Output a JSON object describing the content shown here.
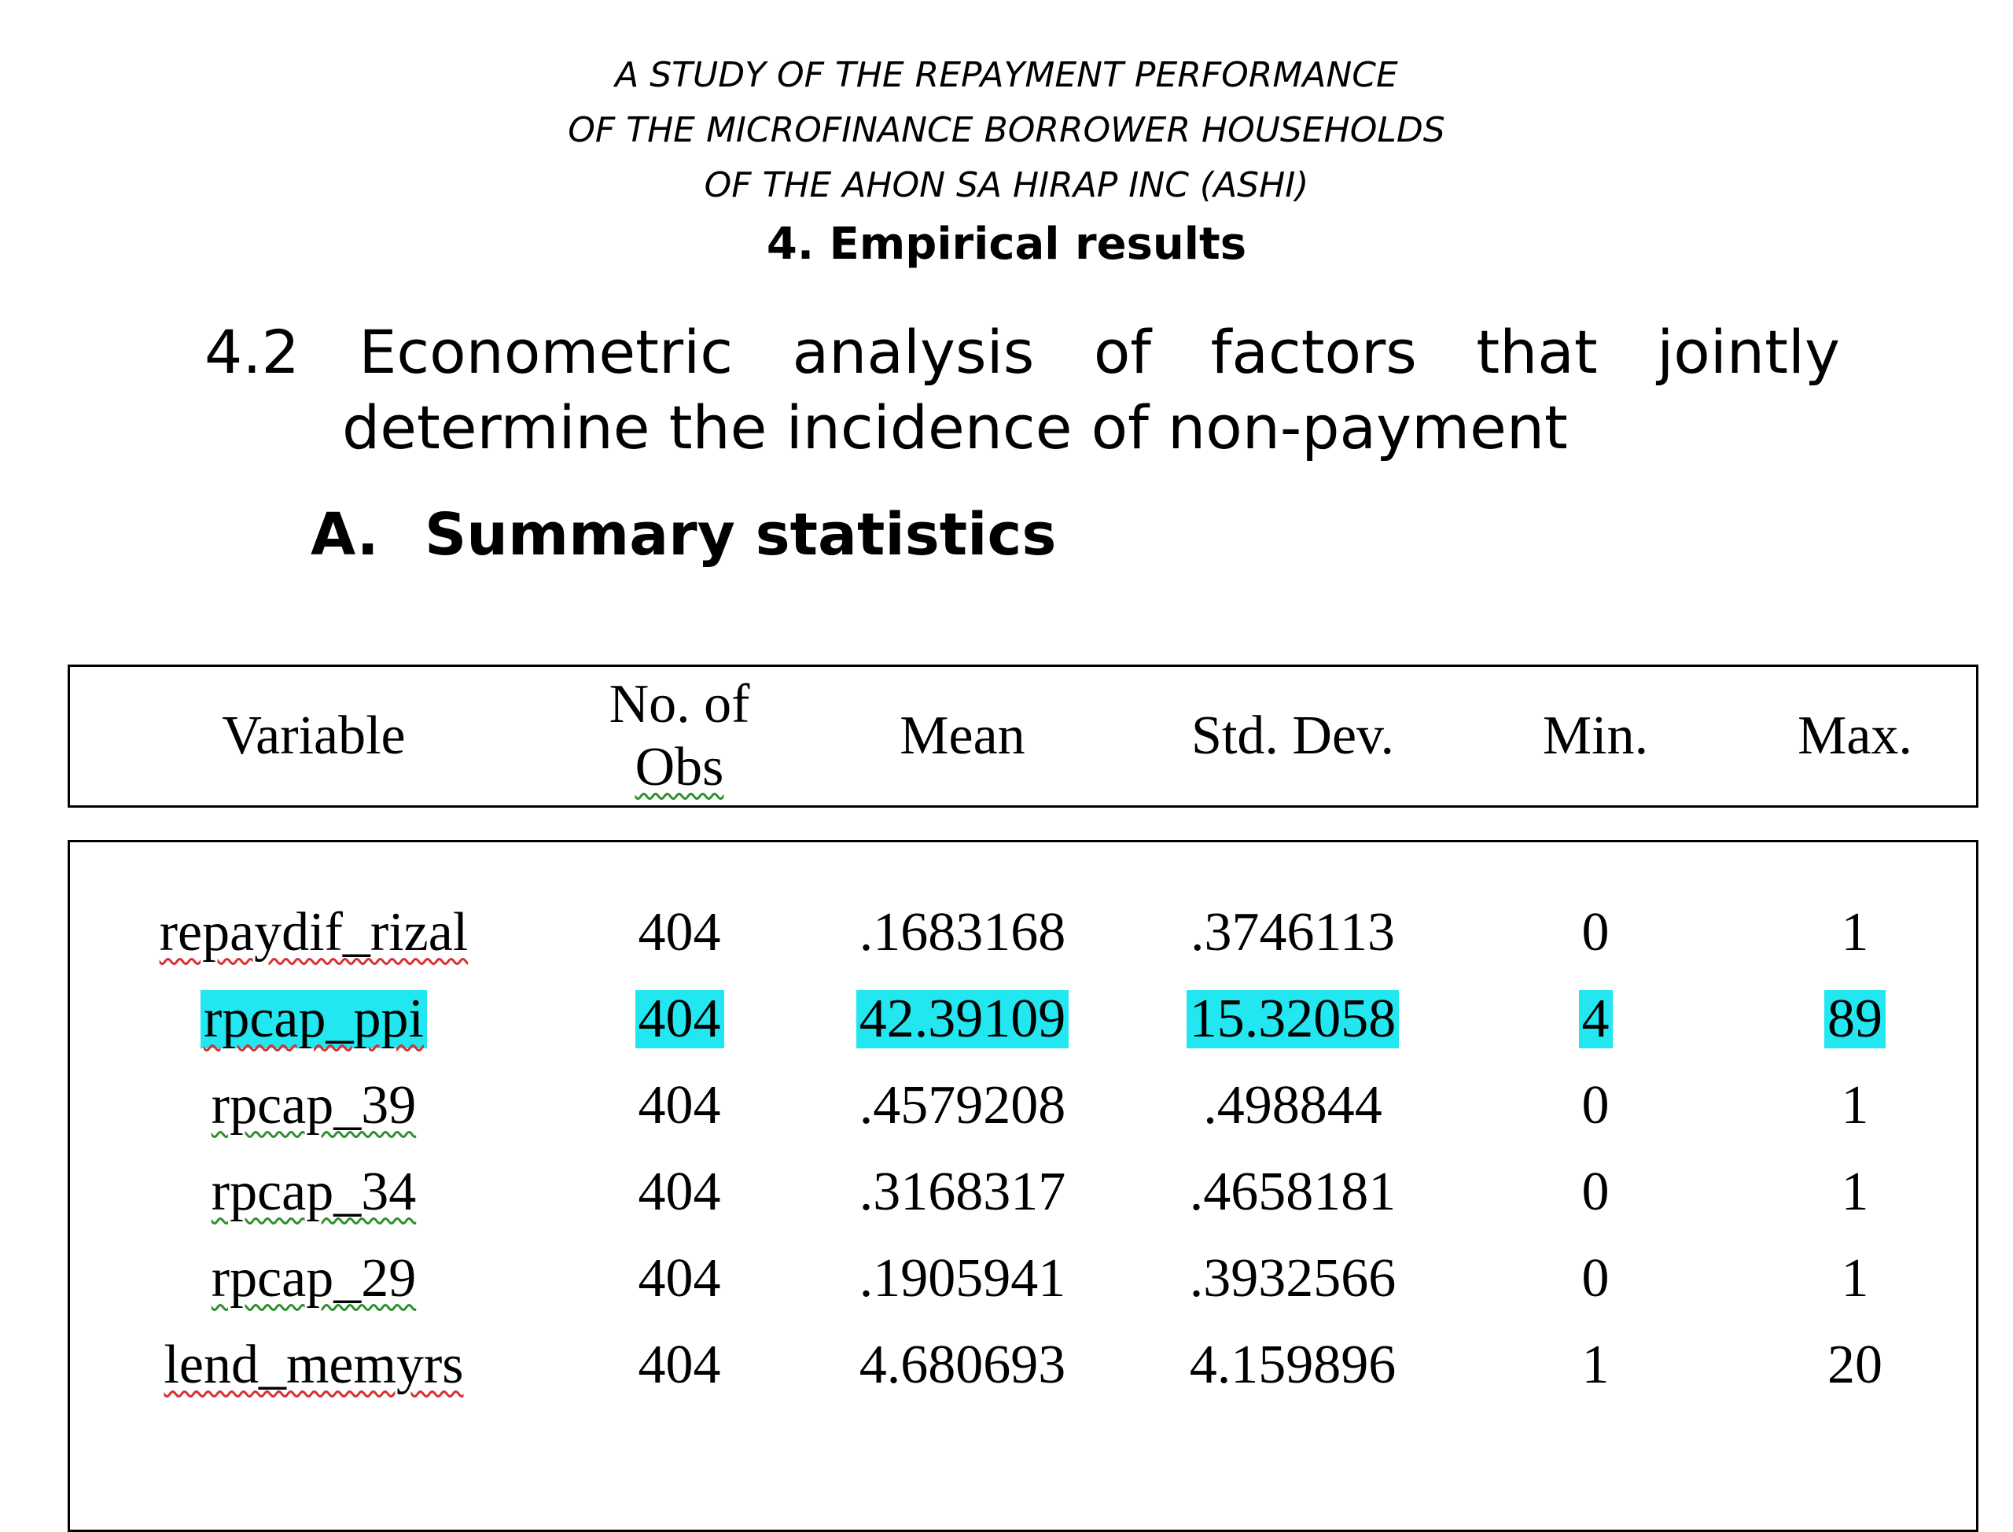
{
  "header": {
    "line1": "A STUDY OF THE REPAYMENT PERFORMANCE",
    "line2": "OF THE MICROFINANCE BORROWER HOUSEHOLDS",
    "line3": "OF THE AHON SA HIRAP INC (ASHI)",
    "section": "4.  Empirical results"
  },
  "subsection": {
    "number": "4.2",
    "words_line1": [
      "Econometric",
      "analysis",
      "of",
      "factors",
      "that",
      "jointly"
    ],
    "line2": "determine the incidence of non-payment"
  },
  "subsubsection": {
    "letter": "A.",
    "title": "Summary statistics"
  },
  "table": {
    "columns": {
      "variable": "Variable",
      "obs_line1": "No. of",
      "obs_line2": "Obs",
      "mean": "Mean",
      "std": "Std. Dev.",
      "min": "Min.",
      "max": "Max."
    },
    "rows": [
      {
        "variable": "repaydif_rizal",
        "obs": "404",
        "mean": ".1683168",
        "std": ".3746113",
        "min": "0",
        "max": "1",
        "highlighted": false
      },
      {
        "variable": "rpcap_ppi",
        "obs": "404",
        "mean": "42.39109",
        "std": "15.32058",
        "min": "4",
        "max": "89",
        "highlighted": true
      },
      {
        "variable": "rpcap_39",
        "obs": "404",
        "mean": ".4579208",
        "std": ".498844",
        "min": "0",
        "max": "1",
        "highlighted": false
      },
      {
        "variable": "rpcap_34",
        "obs": "404",
        "mean": ".3168317",
        "std": ".4658181",
        "min": "0",
        "max": "1",
        "highlighted": false
      },
      {
        "variable": "rpcap_29",
        "obs": "404",
        "mean": ".1905941",
        "std": ".3932566",
        "min": "0",
        "max": "1",
        "highlighted": false
      },
      {
        "variable": "lend_memyrs",
        "obs": "404",
        "mean": "4.680693",
        "std": "4.159896",
        "min": "1",
        "max": "20",
        "highlighted": false
      }
    ],
    "highlight_color": "#22e6f0"
  }
}
